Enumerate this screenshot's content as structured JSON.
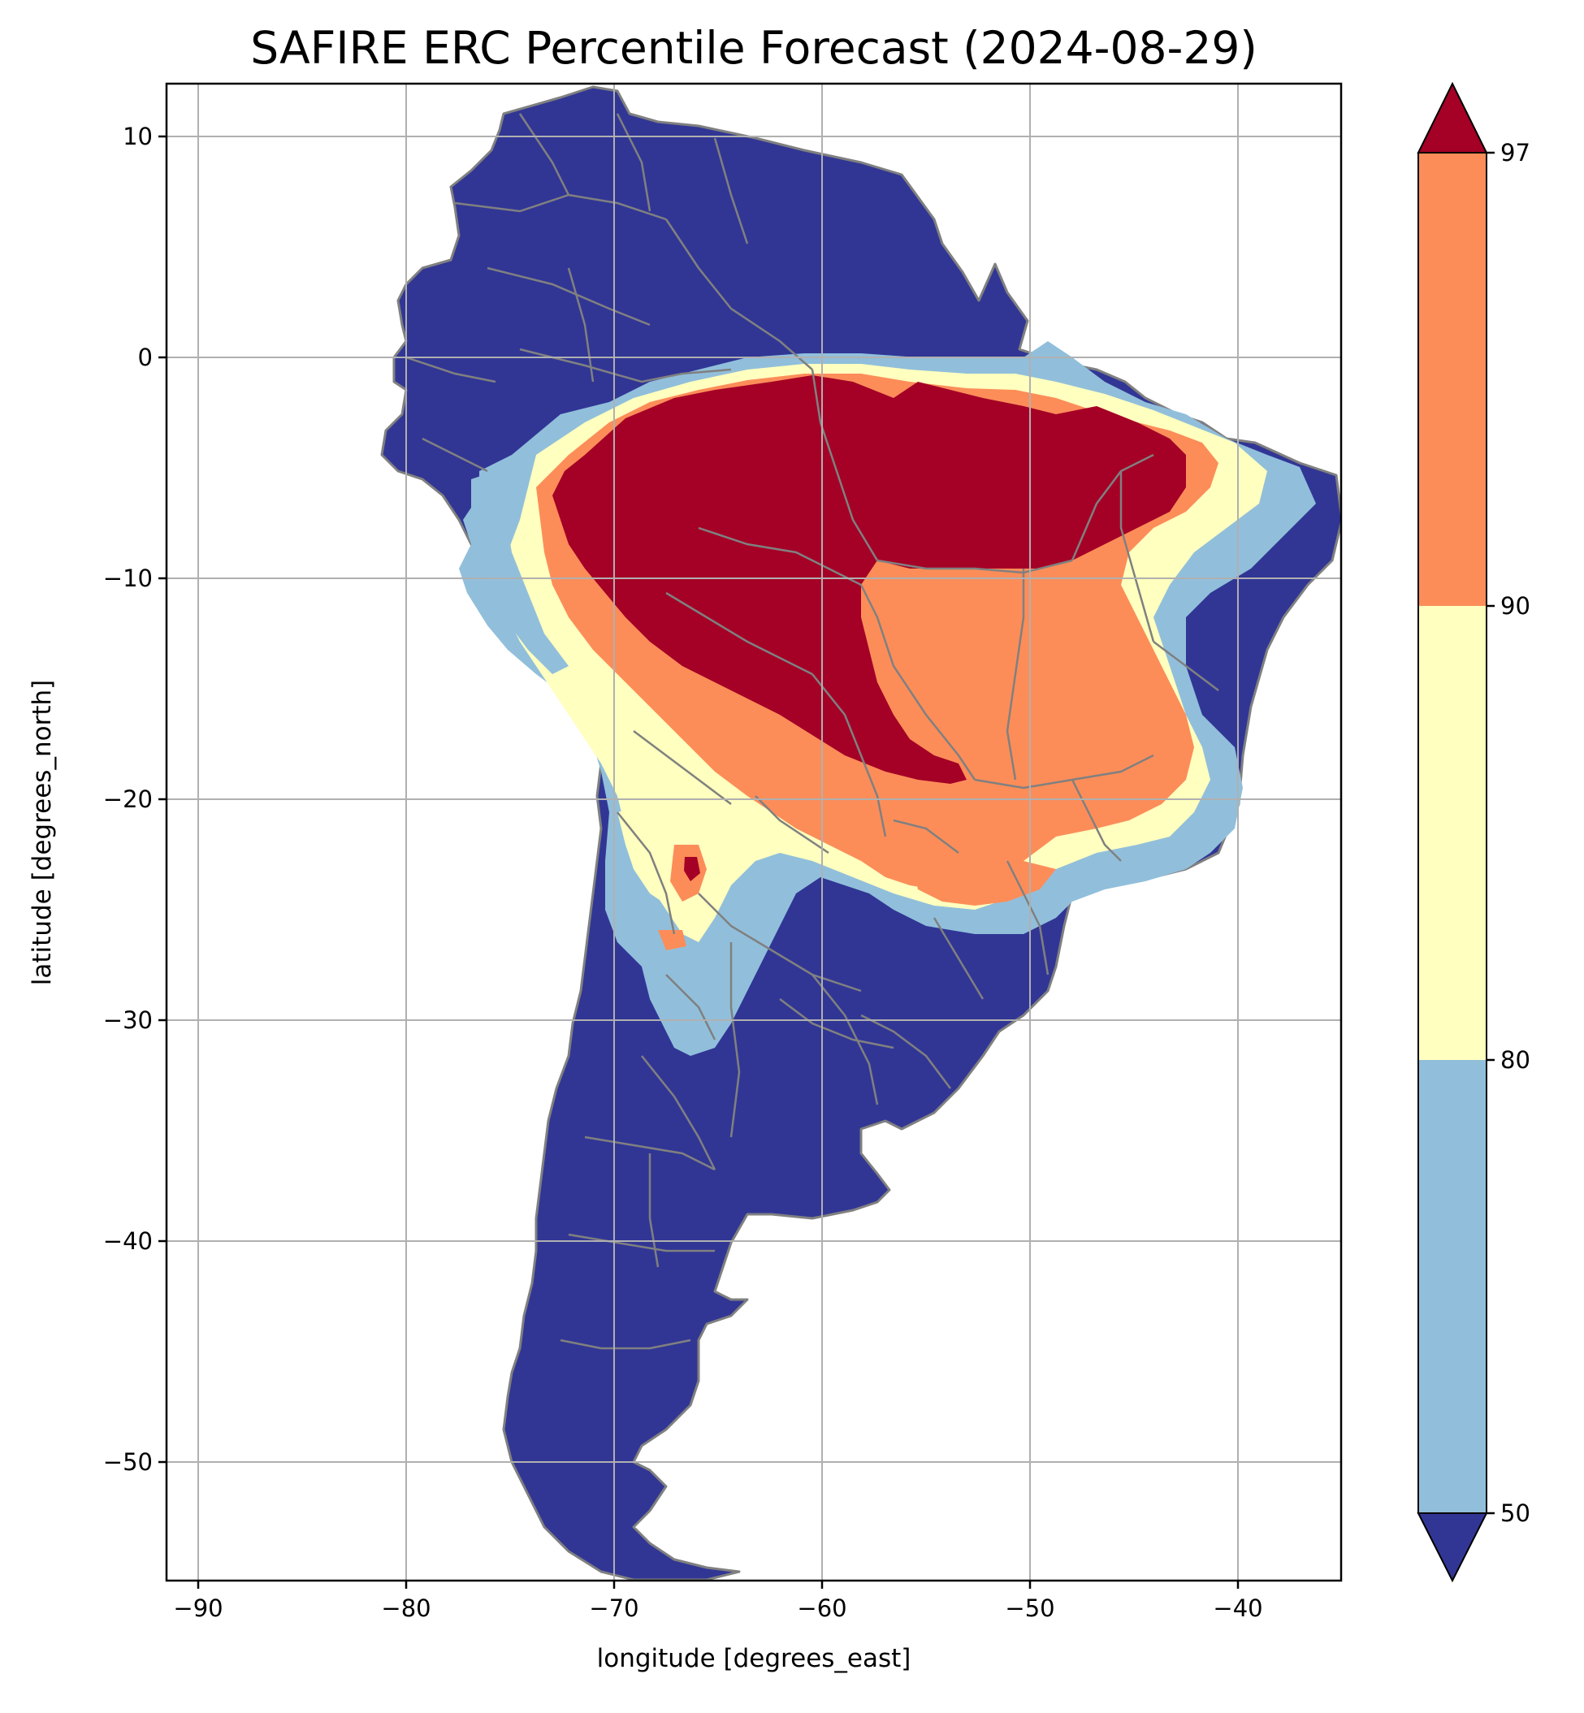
{
  "title": "SAFIRE ERC Percentile Forecast (2024-08-29)",
  "map": {
    "projection": "PlateCarree",
    "extent": {
      "lon_min": -91.6,
      "lon_max": -35.2,
      "lat_min": -55.9,
      "lat_max": 12.4
    },
    "xlabel": "longitude [degrees_east]",
    "ylabel": "latitude [degrees_north]",
    "xticks": [
      -90,
      -80,
      -70,
      -60,
      -50,
      -40
    ],
    "yticks": [
      10,
      0,
      -10,
      -20,
      -30,
      -40,
      -50
    ],
    "xtick_labels": [
      "−90",
      "−80",
      "−70",
      "−60",
      "−50",
      "−40"
    ],
    "ytick_labels": [
      "10",
      "0",
      "−10",
      "−20",
      "−30",
      "−40",
      "−50"
    ],
    "grid": true,
    "land_outline_color": "#808080",
    "ocean_color": "#ffffff"
  },
  "colorbar": {
    "boundaries": [
      50,
      80,
      90,
      97
    ],
    "tick_labels": [
      "50",
      "80",
      "90",
      "97"
    ],
    "extend": "both",
    "colors": {
      "below_50": "#313695",
      "50_80": "#91bfdb",
      "80_90": "#ffffbf",
      "90_97": "#fc8d59",
      "above_97": "#a50026"
    }
  },
  "regions": {
    "continent": "#313695",
    "light_blue_band": "#91bfdb",
    "yellow_band": "#ffffbf",
    "orange_zone": "#fc8d59",
    "red_core": "#a50026"
  }
}
